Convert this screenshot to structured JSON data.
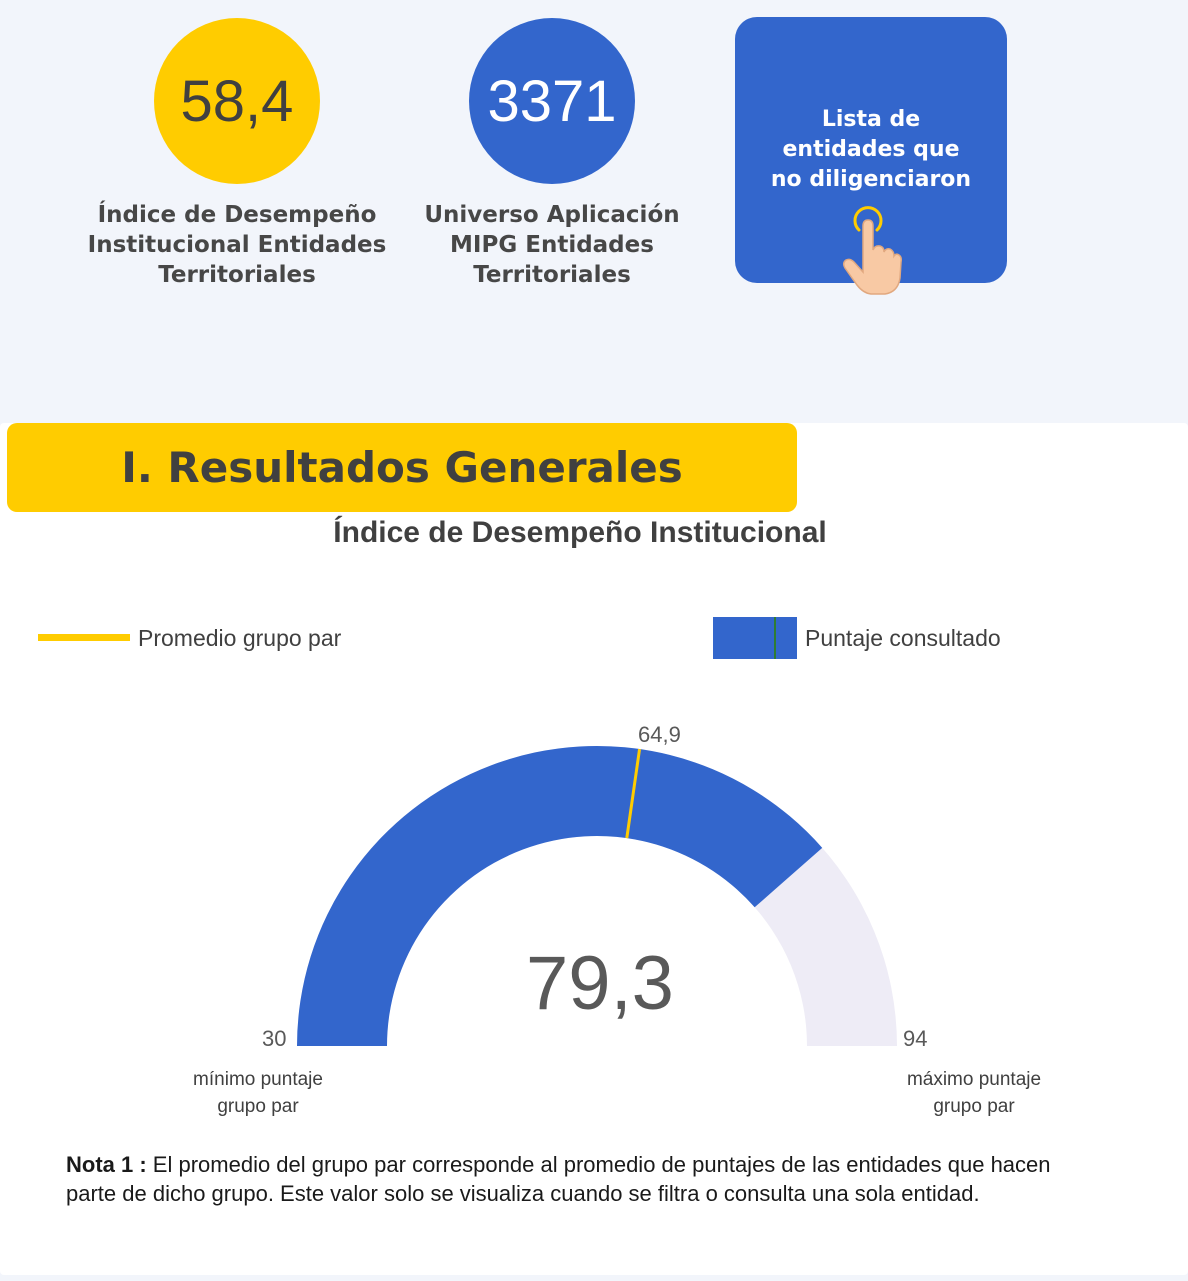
{
  "kpis": [
    {
      "value": "58,4",
      "label": "Índice de Desempeño\nInstitucional Entidades\nTerritoriales",
      "color": "#ffcc00"
    },
    {
      "value": "3371",
      "label": "Universo Aplicación\nMIPG Entidades\nTerritoriales",
      "color": "#3366cc"
    }
  ],
  "cta": {
    "label": "Lista de\nentidades que\nno diligenciaron",
    "icon": "pointing-hand-icon",
    "color": "#3366cc"
  },
  "section": {
    "title": "I. Resultados Generales",
    "color": "#ffcc00"
  },
  "chart_data": {
    "type": "gauge",
    "title": "Índice de Desempeño Institucional",
    "legend": [
      {
        "name": "Promedio grupo par",
        "color": "#ffcc00"
      },
      {
        "name": "Puntaje consultado",
        "color": "#3366cc"
      }
    ],
    "min": 30,
    "max": 94,
    "value": 79.3,
    "value_label": "79,3",
    "average": 64.9,
    "average_label": "64,9",
    "min_label": "30",
    "max_label": "94",
    "min_caption": "mínimo puntaje\ngrupo par",
    "max_caption": "máximo puntaje\ngrupo par",
    "fill_color": "#3366cc",
    "track_color": "#eeecf6"
  },
  "note": {
    "prefix": "Nota 1 :",
    "text": " El promedio del grupo par corresponde al promedio de puntajes de las entidades que hacen parte de dicho grupo.  Este valor solo se visualiza cuando se filtra o consulta una sola entidad."
  }
}
